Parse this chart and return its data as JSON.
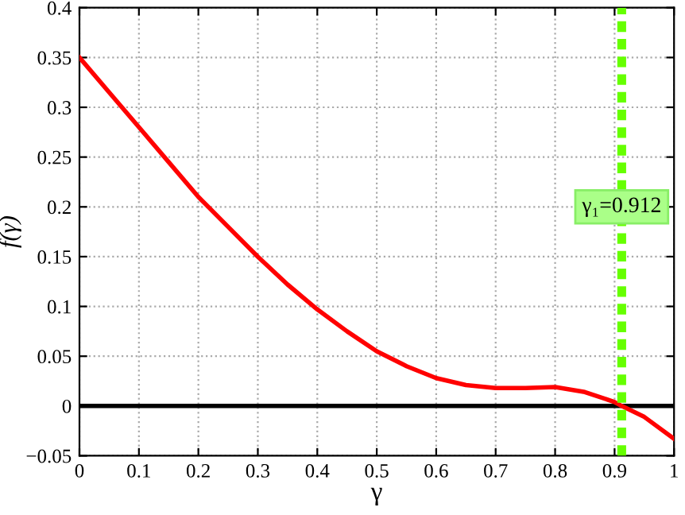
{
  "chart_data": {
    "type": "line",
    "xlabel": "γ",
    "ylabel": "f(γ)",
    "x": [
      0,
      0.05,
      0.1,
      0.15,
      0.2,
      0.25,
      0.3,
      0.35,
      0.4,
      0.45,
      0.5,
      0.55,
      0.6,
      0.65,
      0.7,
      0.75,
      0.8,
      0.85,
      0.9,
      0.912,
      0.95,
      1
    ],
    "series": [
      {
        "color": "#ff0000",
        "values": [
          0.35,
          0.315,
          0.28,
          0.245,
          0.21,
          0.18,
          0.15,
          0.122,
          0.097,
          0.075,
          0.055,
          0.04,
          0.028,
          0.021,
          0.018,
          0.018,
          0.019,
          0.014,
          0.004,
          0,
          -0.011,
          -0.033
        ]
      }
    ],
    "xlim": [
      0,
      1
    ],
    "ylim": [
      -0.05,
      0.4
    ],
    "xticks": [
      0,
      0.1,
      0.2,
      0.3,
      0.4,
      0.5,
      0.6,
      0.7,
      0.8,
      0.9,
      1
    ],
    "yticks": [
      {
        "value": -0.05,
        "label": "−0.05"
      },
      0,
      0.05,
      0.1,
      0.15,
      0.2,
      0.25,
      0.3,
      0.35,
      0.4
    ],
    "ref_lines": [
      {
        "axis": "y",
        "value": 0,
        "color": "#000000",
        "line_style": "solid"
      },
      {
        "axis": "x",
        "value": 0.912,
        "label": "γ₁=0.912",
        "color": "#66ff00",
        "line_style": "dashed"
      }
    ],
    "grid": true,
    "line_style": "solid",
    "marker": "none"
  }
}
